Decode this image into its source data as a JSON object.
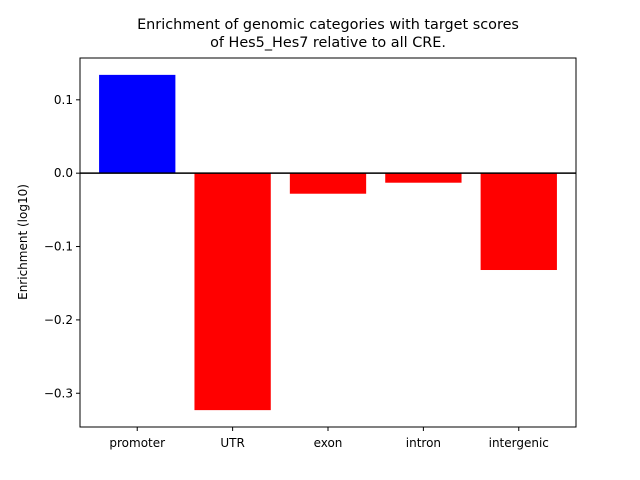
{
  "chart_data": {
    "type": "bar",
    "title": [
      "Enrichment of genomic categories with target scores",
      "of Hes5_Hes7 relative to all CRE."
    ],
    "xlabel": "",
    "ylabel": "Enrichment (log10)",
    "categories": [
      "promoter",
      "UTR",
      "exon",
      "intron",
      "intergenic"
    ],
    "values": [
      0.134,
      -0.323,
      -0.028,
      -0.013,
      -0.132
    ],
    "colors": [
      "#0000ff",
      "#ff0000",
      "#ff0000",
      "#ff0000",
      "#ff0000"
    ],
    "ylim": [
      -0.346,
      0.157
    ],
    "yticks": [
      0.1,
      0.0,
      -0.1,
      -0.2,
      -0.3
    ],
    "ytick_labels": [
      "0.1",
      "0.0",
      "−0.1",
      "−0.2",
      "−0.3"
    ],
    "zero_line": true,
    "grid": false,
    "legend": "none"
  }
}
